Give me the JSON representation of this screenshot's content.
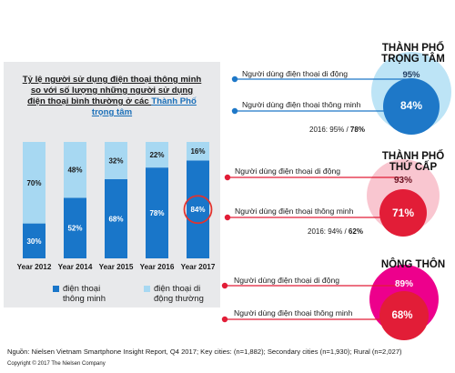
{
  "chart_data": [
    {
      "type": "bar",
      "stacked": true,
      "title_parts": [
        "Tỷ lệ người sử dụng điện thoại thông minh",
        "so với số lượng những người sử dụng",
        "điện thoại bình thường ở các ",
        "Thành Phố",
        "trọng tâm"
      ],
      "categories": [
        "Year 2012",
        "Year 2014",
        "Year 2015",
        "Year 2016",
        "Year 2017"
      ],
      "series": [
        {
          "name": "điện thoại thông minh",
          "values": [
            30,
            52,
            68,
            78,
            84
          ],
          "labels": [
            "30%",
            "52%",
            "68%",
            "78%",
            "84%"
          ],
          "color": "#1976c9"
        },
        {
          "name": "điện thoại di động thường",
          "values": [
            70,
            48,
            32,
            22,
            16
          ],
          "labels": [
            "70%",
            "48%",
            "32%",
            "22%",
            "16%"
          ],
          "color": "#a7d8f2"
        }
      ],
      "ylim": [
        0,
        100
      ],
      "highlight": {
        "category": "Year 2017",
        "series": "điện thoại thông minh",
        "color": "#e1332f"
      },
      "legend": [
        {
          "lines": [
            "điện thoại",
            "thông minh"
          ],
          "color": "#1976c9"
        },
        {
          "lines": [
            "điện thoại di",
            "động thường"
          ],
          "color": "#a7d8f2"
        }
      ]
    },
    {
      "type": "nested-circles",
      "sections": [
        {
          "title_lines": [
            "THÀNH PHỐ",
            "TRỌNG TÂM"
          ],
          "mobile_label": "Người dùng điện thoại di động",
          "smartphone_label": "Người dùng điện thoại thông minh",
          "mobile_pct": 95,
          "mobile_text": "95%",
          "smartphone_pct": 84,
          "smartphone_text": "84%",
          "stat_prefix": "2016: 95% / ",
          "stat_bold": "78%",
          "outer_color": "#bde4f6",
          "inner_color": "#1e78c8",
          "line_color": "#1e78c8",
          "mobile_value_color": "#1e3a5f",
          "smartphone_value_color": "#ffffff"
        },
        {
          "title_lines": [
            "THÀNH PHỐ",
            "THỨ CẤP"
          ],
          "mobile_label": "Người dùng điện thoại di động",
          "smartphone_label": "Người dùng điện thoại thông minh",
          "mobile_pct": 93,
          "mobile_text": "93%",
          "smartphone_pct": 71,
          "smartphone_text": "71%",
          "stat_prefix": "2016: 94% / ",
          "stat_bold": "62%",
          "outer_color": "#f9c6d0",
          "inner_color": "#e21d37",
          "line_color": "#e21d37",
          "mobile_value_color": "#6b1020",
          "smartphone_value_color": "#ffffff"
        },
        {
          "title_lines": [
            "NÔNG THÔN"
          ],
          "mobile_label": "Người dùng điện thoại di động",
          "smartphone_label": "Người dùng điện thoại thông minh",
          "mobile_pct": 89,
          "mobile_text": "89%",
          "smartphone_pct": 68,
          "smartphone_text": "68%",
          "stat_prefix": "",
          "stat_bold": "",
          "outer_color": "#ed008c",
          "inner_color": "#e21d37",
          "line_color": "#e21d37",
          "mobile_value_color": "#ffffff",
          "smartphone_value_color": "#ffffff"
        }
      ]
    }
  ],
  "footer": {
    "source": "Nguồn: Nielsen Vietnam Smartphone Insight Report, Q4 2017; Key cities: (n=1,882); Secondary cities (n=1,930); Rural (n=2,027)",
    "copyright": "Copyright © 2017 The Nielsen Company"
  }
}
